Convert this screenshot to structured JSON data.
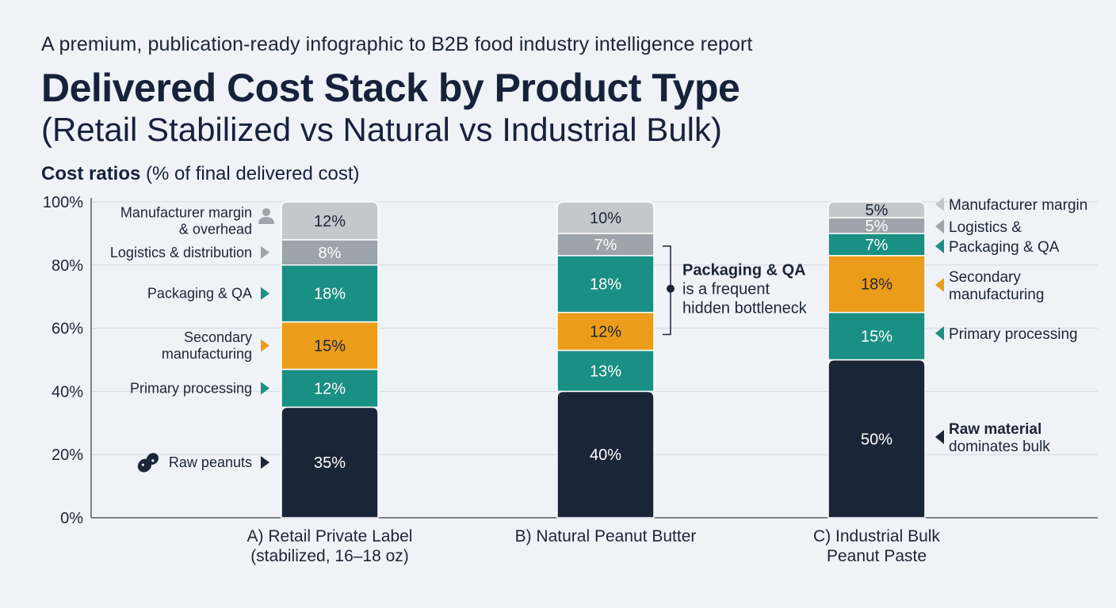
{
  "header": {
    "kicker": "A premium, publication-ready infographic to B2B food industry intelligence report",
    "title": "Delivered Cost Stack by Product Type",
    "subtitle": "(Retail Stabilized vs Natural vs Industrial Bulk)",
    "section_label_bold": "Cost ratios",
    "section_label_rest": " (% of final delivered cost)"
  },
  "colors": {
    "raw": "#1b2538",
    "primary": "#1a8f83",
    "secondary": "#eb9c1a",
    "packaging": "#1a8f83",
    "logistics": "#9da4ab",
    "margin": "#c3c8cd",
    "axis": "#555d66",
    "grid": "#d3d9e0",
    "text": "#1b2535"
  },
  "chart_data": {
    "type": "bar",
    "stacked": true,
    "ylim": [
      0,
      100
    ],
    "yticks": [
      "0%",
      "20%",
      "40%",
      "60%",
      "80%",
      "100%"
    ],
    "grid": true,
    "categories": [
      [
        "A) Retail Private Label",
        "(stabilized, 16–18 oz)"
      ],
      [
        "B) Natural Peanut Butter"
      ],
      [
        "C) Industrial Bulk",
        "Peanut Paste"
      ]
    ],
    "series": [
      {
        "key": "raw",
        "values": [
          35,
          40,
          50
        ],
        "labels": [
          "35%",
          "40%",
          "50%"
        ]
      },
      {
        "key": "primary",
        "values": [
          12,
          13,
          15
        ],
        "labels": [
          "12%",
          "13%",
          "15%"
        ]
      },
      {
        "key": "secondary",
        "values": [
          15,
          12,
          18
        ],
        "labels": [
          "15%",
          "12%",
          "18%"
        ]
      },
      {
        "key": "packaging",
        "values": [
          18,
          18,
          7
        ],
        "labels": [
          "18%",
          "18%",
          "7%"
        ]
      },
      {
        "key": "logistics",
        "values": [
          8,
          7,
          5
        ],
        "labels": [
          "8%",
          "7%",
          "5%"
        ]
      },
      {
        "key": "margin",
        "values": [
          12,
          10,
          5
        ],
        "labels": [
          "12%",
          "10%",
          "5%"
        ]
      }
    ],
    "left_annotations": [
      {
        "series": "margin",
        "lines": [
          "Manufacturer margin",
          "& overhead"
        ],
        "icon": "person-icon"
      },
      {
        "series": "logistics",
        "lines": [
          "Logistics & distribution"
        ],
        "icon": "arrow-right-icon"
      },
      {
        "series": "packaging",
        "lines": [
          "Packaging & QA"
        ],
        "icon": "arrow-right-icon"
      },
      {
        "series": "secondary",
        "lines": [
          "Secondary",
          "manufacturing"
        ],
        "icon": "arrow-right-icon"
      },
      {
        "series": "primary",
        "lines": [
          "Primary processing"
        ],
        "icon": "arrow-right-icon"
      },
      {
        "series": "raw",
        "lines": [
          "Raw peanuts"
        ],
        "icon": "arrow-right-icon",
        "lead_icon": "peanut-icon"
      }
    ],
    "middle_callout": {
      "bold": "Packaging & QA",
      "rest": [
        "is a frequent",
        "hidden bottleneck"
      ]
    },
    "right_annotations": [
      {
        "series": "margin",
        "lines": [
          "Manufacturer margin"
        ]
      },
      {
        "series": "logistics",
        "lines": [
          "Logistics &"
        ]
      },
      {
        "series": "packaging",
        "lines": [
          "Packaging & QA"
        ]
      },
      {
        "series": "secondary",
        "lines": [
          "Secondary",
          "manufacturing"
        ]
      },
      {
        "series": "primary",
        "lines": [
          "Primary processing"
        ]
      },
      {
        "series": "raw",
        "lines": [
          "Raw material",
          "dominates bulk"
        ],
        "bold_first": true
      }
    ]
  }
}
